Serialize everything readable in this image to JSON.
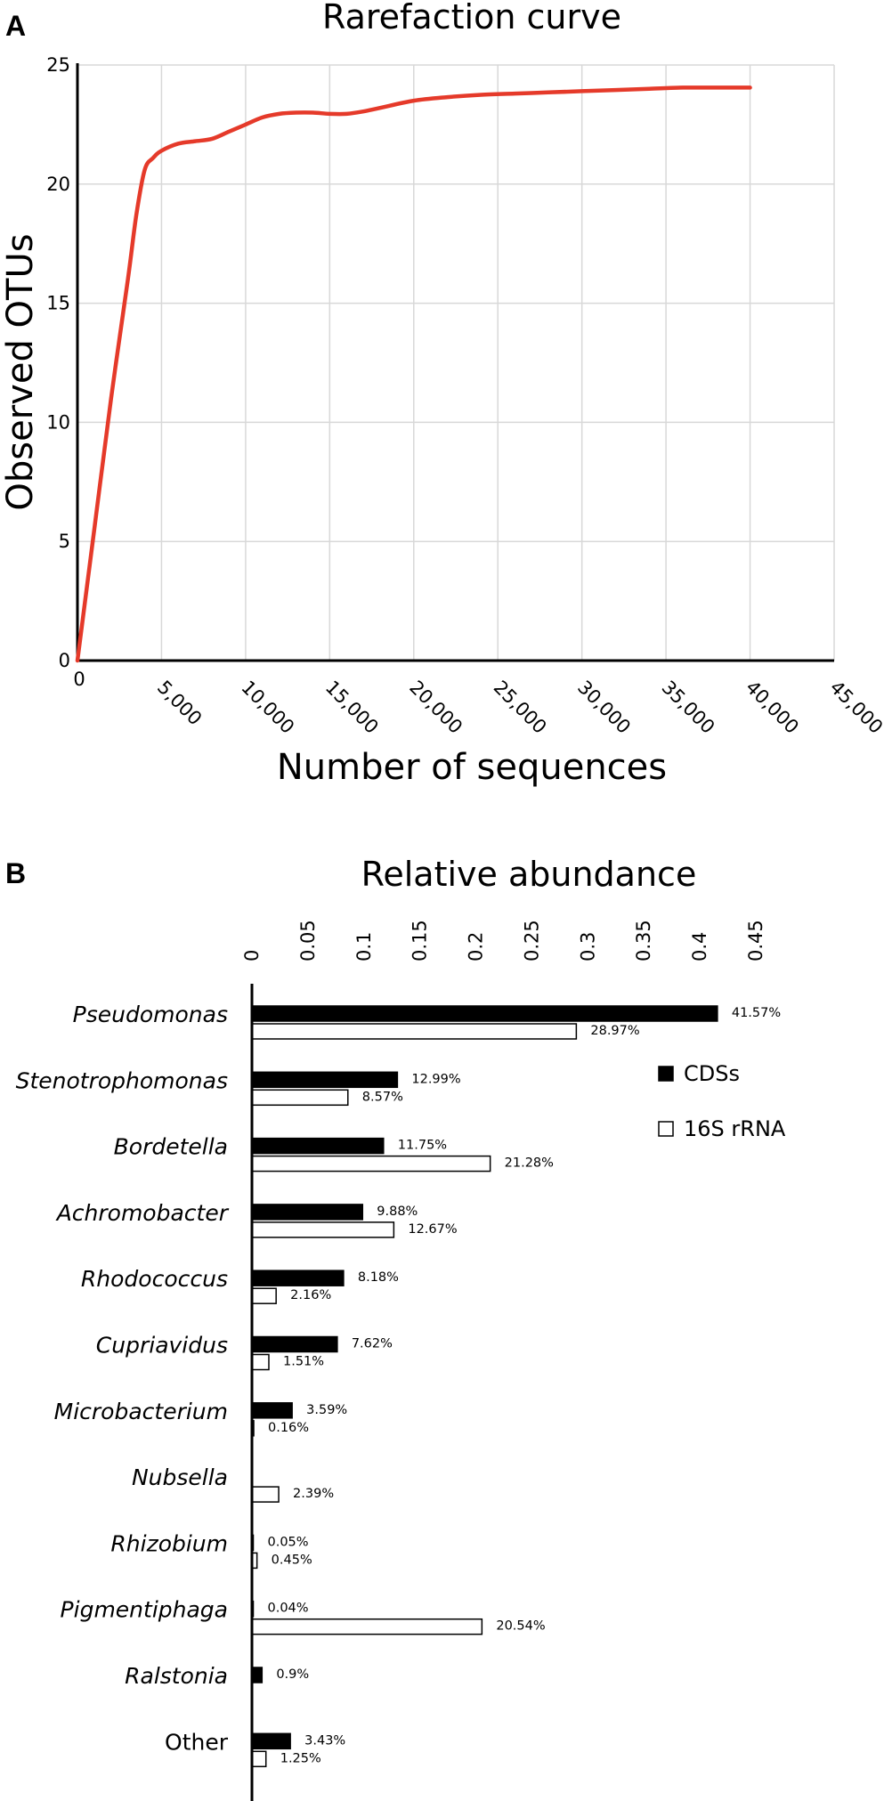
{
  "chart_data": [
    {
      "panel": "A",
      "type": "line",
      "title": "Rarefaction curve",
      "xlabel": "Number of sequences",
      "ylabel": "Observed OTUs",
      "xlim": [
        0,
        45000
      ],
      "ylim": [
        0,
        25
      ],
      "grid": true,
      "x_ticks": [
        "0",
        "5,000",
        "10,000",
        "15,000",
        "20,000",
        "25,000",
        "30,000",
        "35,000",
        "40,000",
        "45,000"
      ],
      "y_ticks": [
        "0",
        "5",
        "10",
        "15",
        "20",
        "25"
      ],
      "series": [
        {
          "name": "Observed OTUs",
          "color": "#e53a2a",
          "x": [
            0,
            1000,
            2000,
            3000,
            3500,
            4000,
            4500,
            5000,
            6000,
            7000,
            8000,
            9000,
            10000,
            11000,
            12000,
            13000,
            14000,
            15000,
            16000,
            17000,
            18000,
            20000,
            22000,
            24000,
            26000,
            28000,
            30000,
            32000,
            34000,
            36000,
            38000,
            40000
          ],
          "y": [
            0,
            5.5,
            11,
            16,
            18.7,
            20.6,
            21.1,
            21.4,
            21.7,
            21.8,
            21.9,
            22.2,
            22.5,
            22.8,
            22.95,
            23.0,
            23.0,
            22.95,
            22.95,
            23.05,
            23.2,
            23.5,
            23.65,
            23.75,
            23.8,
            23.85,
            23.9,
            23.95,
            24.0,
            24.05,
            24.05,
            24.05
          ]
        }
      ]
    },
    {
      "panel": "B",
      "type": "bar",
      "orientation": "horizontal",
      "title": "Relative abundance",
      "xlim": [
        0,
        0.45
      ],
      "x_ticks": [
        "0",
        "0.05",
        "0.1",
        "0.15",
        "0.2",
        "0.25",
        "0.3",
        "0.35",
        "0.4",
        "0.45"
      ],
      "categories": [
        "Pseudomonas",
        "Stenotrophomonas",
        "Bordetella",
        "Achromobacter",
        "Rhodococcus",
        "Cupriavidus",
        "Microbacterium",
        "Nubsella",
        "Rhizobium",
        "Pigmentiphaga",
        "Ralstonia",
        "Other"
      ],
      "italic": [
        true,
        true,
        true,
        true,
        true,
        true,
        true,
        true,
        true,
        true,
        true,
        false
      ],
      "series": [
        {
          "name": "CDSs",
          "fill": "#000000",
          "values": [
            0.4157,
            0.1299,
            0.1175,
            0.0988,
            0.0818,
            0.0762,
            0.0359,
            null,
            0.0005,
            0.0004,
            0.009,
            0.0343
          ],
          "labels": [
            "41.57%",
            "12.99%",
            "11.75%",
            "9.88%",
            "8.18%",
            "7.62%",
            "3.59%",
            null,
            "0.05%",
            "0.04%",
            "0.9%",
            "3.43%"
          ]
        },
        {
          "name": "16S rRNA",
          "fill": "#ffffff",
          "values": [
            0.2897,
            0.0857,
            0.2128,
            0.1267,
            0.0216,
            0.0151,
            0.0016,
            0.0239,
            0.0045,
            0.2054,
            null,
            0.0125
          ],
          "labels": [
            "28.97%",
            "8.57%",
            "21.28%",
            "12.67%",
            "2.16%",
            "1.51%",
            "0.16%",
            "2.39%",
            "0.45%",
            "20.54%",
            null,
            "1.25%"
          ]
        }
      ]
    }
  ]
}
